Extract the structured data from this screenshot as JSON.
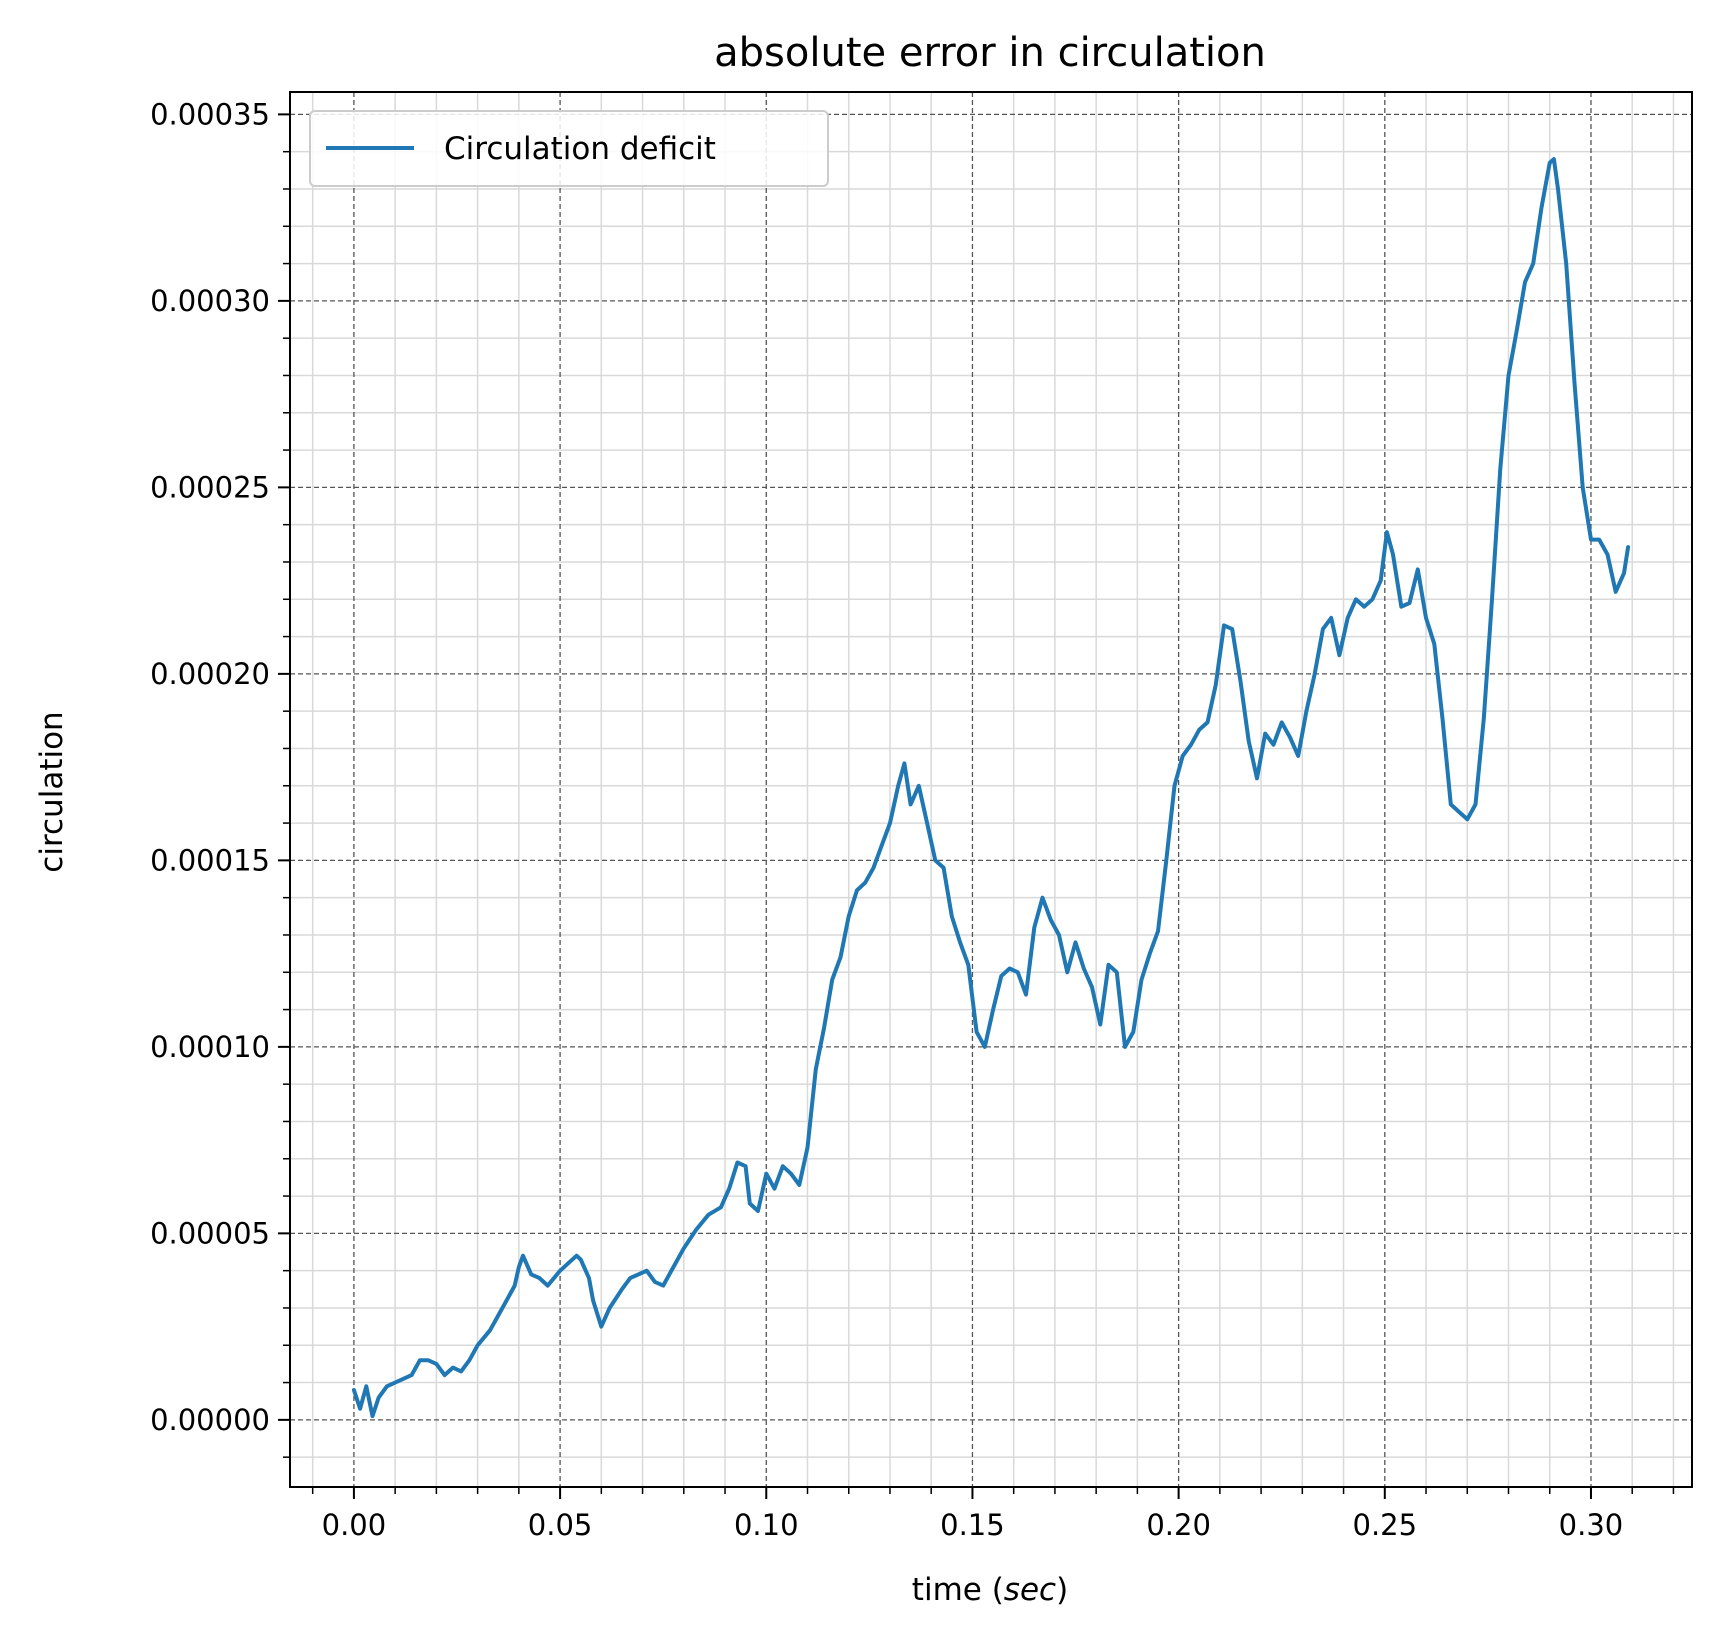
{
  "chart_data": {
    "type": "line",
    "title": "absolute error in circulation",
    "xlabel_prefix": "time (",
    "xlabel_unit": "sec",
    "xlabel_suffix": ")",
    "ylabel": "circulation",
    "xlim": [
      -0.0155,
      0.3245
    ],
    "ylim": [
      -1.8e-05,
      0.000356
    ],
    "xticks": [
      0.0,
      0.05,
      0.1,
      0.15,
      0.2,
      0.25,
      0.3
    ],
    "xtick_labels": [
      "0.00",
      "0.05",
      "0.10",
      "0.15",
      "0.20",
      "0.25",
      "0.30"
    ],
    "yticks": [
      0.0,
      5e-05,
      0.0001,
      0.00015,
      0.0002,
      0.00025,
      0.0003,
      0.00035
    ],
    "ytick_labels": [
      "0.00000",
      "0.00005",
      "0.00010",
      "0.00015",
      "0.00020",
      "0.00025",
      "0.00030",
      "0.00035"
    ],
    "grid": true,
    "minor_grid": true,
    "legend_position": "upper-left",
    "series": [
      {
        "name": "Circulation deficit",
        "color": "#1f77b4",
        "x": [
          0.0,
          0.0015,
          0.003,
          0.0045,
          0.006,
          0.008,
          0.01,
          0.012,
          0.014,
          0.016,
          0.018,
          0.02,
          0.022,
          0.024,
          0.026,
          0.028,
          0.03,
          0.033,
          0.036,
          0.039,
          0.04,
          0.041,
          0.043,
          0.045,
          0.047,
          0.05,
          0.052,
          0.054,
          0.055,
          0.057,
          0.058,
          0.06,
          0.062,
          0.065,
          0.067,
          0.069,
          0.071,
          0.073,
          0.075,
          0.077,
          0.08,
          0.083,
          0.086,
          0.089,
          0.091,
          0.093,
          0.095,
          0.096,
          0.098,
          0.1,
          0.102,
          0.104,
          0.106,
          0.108,
          0.11,
          0.112,
          0.114,
          0.116,
          0.118,
          0.12,
          0.122,
          0.124,
          0.126,
          0.128,
          0.13,
          0.132,
          0.1335,
          0.135,
          0.137,
          0.139,
          0.141,
          0.143,
          0.145,
          0.147,
          0.149,
          0.151,
          0.153,
          0.155,
          0.157,
          0.159,
          0.161,
          0.163,
          0.165,
          0.167,
          0.169,
          0.171,
          0.173,
          0.175,
          0.177,
          0.179,
          0.181,
          0.183,
          0.185,
          0.187,
          0.189,
          0.191,
          0.193,
          0.195,
          0.197,
          0.199,
          0.201,
          0.203,
          0.205,
          0.207,
          0.209,
          0.211,
          0.213,
          0.215,
          0.217,
          0.219,
          0.221,
          0.223,
          0.225,
          0.227,
          0.229,
          0.231,
          0.233,
          0.235,
          0.237,
          0.239,
          0.241,
          0.243,
          0.245,
          0.247,
          0.249,
          0.2505,
          0.252,
          0.254,
          0.256,
          0.258,
          0.26,
          0.262,
          0.264,
          0.266,
          0.268,
          0.27,
          0.272,
          0.274,
          0.276,
          0.278,
          0.28,
          0.282,
          0.284,
          0.286,
          0.288,
          0.29,
          0.291,
          0.292,
          0.294,
          0.296,
          0.298,
          0.3,
          0.302,
          0.304,
          0.306,
          0.308,
          0.309
        ],
        "y": [
          8e-06,
          3e-06,
          9e-06,
          1e-06,
          6e-06,
          9e-06,
          1e-05,
          1.1e-05,
          1.2e-05,
          1.6e-05,
          1.6e-05,
          1.5e-05,
          1.2e-05,
          1.4e-05,
          1.3e-05,
          1.6e-05,
          2e-05,
          2.4e-05,
          3e-05,
          3.6e-05,
          4.1e-05,
          4.4e-05,
          3.9e-05,
          3.8e-05,
          3.6e-05,
          4e-05,
          4.2e-05,
          4.4e-05,
          4.3e-05,
          3.8e-05,
          3.2e-05,
          2.5e-05,
          3e-05,
          3.5e-05,
          3.8e-05,
          3.9e-05,
          4e-05,
          3.7e-05,
          3.6e-05,
          4e-05,
          4.6e-05,
          5.1e-05,
          5.5e-05,
          5.7e-05,
          6.2e-05,
          6.9e-05,
          6.8e-05,
          5.8e-05,
          5.6e-05,
          6.6e-05,
          6.2e-05,
          6.8e-05,
          6.6e-05,
          6.3e-05,
          7.3e-05,
          9.4e-05,
          0.000105,
          0.000118,
          0.000124,
          0.000135,
          0.000142,
          0.000144,
          0.000148,
          0.000154,
          0.00016,
          0.00017,
          0.000176,
          0.000165,
          0.00017,
          0.00016,
          0.00015,
          0.000148,
          0.000135,
          0.000128,
          0.000122,
          0.000104,
          0.0001,
          0.00011,
          0.000119,
          0.000121,
          0.00012,
          0.000114,
          0.000132,
          0.00014,
          0.000134,
          0.00013,
          0.00012,
          0.000128,
          0.000121,
          0.000116,
          0.000106,
          0.000122,
          0.00012,
          0.0001,
          0.000104,
          0.000118,
          0.000125,
          0.000131,
          0.00015,
          0.00017,
          0.000178,
          0.000181,
          0.000185,
          0.000187,
          0.000197,
          0.000213,
          0.000212,
          0.000198,
          0.000182,
          0.000172,
          0.000184,
          0.000181,
          0.000187,
          0.000183,
          0.000178,
          0.00019,
          0.0002,
          0.000212,
          0.000215,
          0.000205,
          0.000215,
          0.00022,
          0.000218,
          0.00022,
          0.000225,
          0.000238,
          0.000232,
          0.000218,
          0.000219,
          0.000228,
          0.000215,
          0.000208,
          0.000188,
          0.000165,
          0.000163,
          0.000161,
          0.000165,
          0.000188,
          0.00022,
          0.000255,
          0.00028,
          0.000292,
          0.000305,
          0.00031,
          0.000325,
          0.000337,
          0.000338,
          0.00033,
          0.00031,
          0.000278,
          0.00025,
          0.000236,
          0.000236,
          0.000232,
          0.000222,
          0.000227,
          0.000234
        ]
      }
    ]
  }
}
